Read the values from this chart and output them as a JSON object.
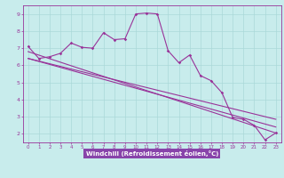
{
  "bg_color": "#c8ecec",
  "plot_bg_color": "#c8ecec",
  "line_color": "#993399",
  "grid_color": "#aad8d8",
  "xlabel": "Windchill (Refroidissement éolien,°C)",
  "xlabel_bg": "#8844aa",
  "xlabel_fg": "#ffffff",
  "ylim": [
    1.5,
    9.5
  ],
  "xlim": [
    -0.5,
    23.5
  ],
  "yticks": [
    2,
    3,
    4,
    5,
    6,
    7,
    8,
    9
  ],
  "xticks": [
    0,
    1,
    2,
    3,
    4,
    5,
    6,
    7,
    8,
    9,
    10,
    11,
    12,
    13,
    14,
    15,
    16,
    17,
    18,
    19,
    20,
    21,
    22,
    23
  ],
  "main_line_x": [
    0,
    1,
    2,
    3,
    4,
    5,
    6,
    7,
    8,
    9,
    10,
    11,
    12,
    13,
    14,
    15,
    16,
    17,
    18,
    19,
    20,
    21,
    22,
    23
  ],
  "main_line_y": [
    7.1,
    6.4,
    6.5,
    6.7,
    7.3,
    7.05,
    7.0,
    7.9,
    7.5,
    7.55,
    9.0,
    9.05,
    9.0,
    6.85,
    6.15,
    6.6,
    5.4,
    5.1,
    4.4,
    2.95,
    2.85,
    2.5,
    1.65,
    2.05
  ],
  "line2_x": [
    0,
    23
  ],
  "line2_y": [
    6.8,
    2.05
  ],
  "line3_x": [
    0,
    23
  ],
  "line3_y": [
    6.4,
    2.4
  ],
  "line4_x": [
    0,
    23
  ],
  "line4_y": [
    6.4,
    2.85
  ]
}
